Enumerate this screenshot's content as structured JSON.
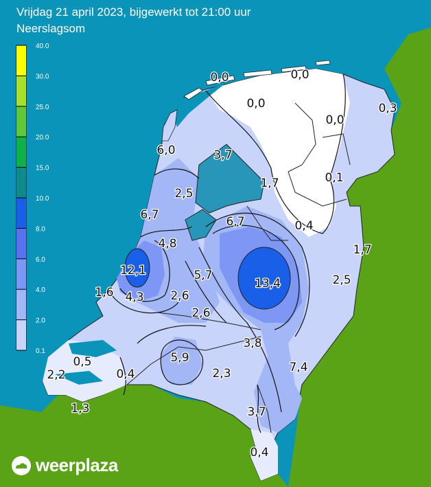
{
  "header": {
    "title": "Vrijdag 21 april 2023, bijgewerkt tot 21:00 uur",
    "subtitle": "Neerslagsom"
  },
  "legend": {
    "ticks": [
      "40.0",
      "30.0",
      "25.0",
      "20.0",
      "15.0",
      "10.0",
      "8.0",
      "6.0",
      "4.0",
      "2.0",
      "0.1"
    ],
    "colors": [
      "#ffff00",
      "#a8e02a",
      "#5ec83a",
      "#12b04a",
      "#0e8a8a",
      "#1a5fe8",
      "#5a72f0",
      "#7e96f4",
      "#a3b7f7",
      "#c8d4fa",
      "#e6ebfd"
    ]
  },
  "colors": {
    "sea": "#0a94ba",
    "land_abroad": "#5aa316",
    "lake": "#2896b8",
    "white_zone": "#ffffff"
  },
  "values": [
    {
      "label": "0,0",
      "name": "value-texel-north"
    },
    {
      "label": "0,0",
      "name": "value-schiermonnikoog"
    },
    {
      "label": "0,0",
      "name": "value-friesland"
    },
    {
      "label": "0,3",
      "name": "value-groningen-east"
    },
    {
      "label": "0,0",
      "name": "value-drenthe-north"
    },
    {
      "label": "6,0",
      "name": "value-noord-holland-north"
    },
    {
      "label": "3,7",
      "name": "value-wadden-ijsselmeer"
    },
    {
      "label": "0,1",
      "name": "value-drenthe"
    },
    {
      "label": "1,7",
      "name": "value-noordoostpolder"
    },
    {
      "label": "2,5",
      "name": "value-west-friesland"
    },
    {
      "label": "6,7",
      "name": "value-haarlem"
    },
    {
      "label": "6,7",
      "name": "value-flevoland"
    },
    {
      "label": "0,4",
      "name": "value-overijssel-north"
    },
    {
      "label": "4,8",
      "name": "value-amsterdam"
    },
    {
      "label": "1,7",
      "name": "value-twente"
    },
    {
      "label": "12,1",
      "name": "value-leiden"
    },
    {
      "label": "5,7",
      "name": "value-utrecht-north"
    },
    {
      "label": "13,4",
      "name": "value-veluwe"
    },
    {
      "label": "2,5",
      "name": "value-achterhoek"
    },
    {
      "label": "1,6",
      "name": "value-hoek-van-holland"
    },
    {
      "label": "4,3",
      "name": "value-rotterdam"
    },
    {
      "label": "2,6",
      "name": "value-utrecht-west"
    },
    {
      "label": "2,6",
      "name": "value-rivierenland"
    },
    {
      "label": "3,8",
      "name": "value-nijmegen"
    },
    {
      "label": "0,5",
      "name": "value-zeeland-north"
    },
    {
      "label": "5,9",
      "name": "value-breda"
    },
    {
      "label": "7,4",
      "name": "value-venlo"
    },
    {
      "label": "2,2",
      "name": "value-walcheren"
    },
    {
      "label": "0,4",
      "name": "value-bergen-op-zoom"
    },
    {
      "label": "2,3",
      "name": "value-eindhoven"
    },
    {
      "label": "1,3",
      "name": "value-zeeuws-vlaanderen"
    },
    {
      "label": "3,7",
      "name": "value-roermond"
    },
    {
      "label": "0,4",
      "name": "value-maastricht"
    }
  ],
  "brand": {
    "logo_text": "weerplaza",
    "logo_icon": "cloud-sun-icon"
  }
}
